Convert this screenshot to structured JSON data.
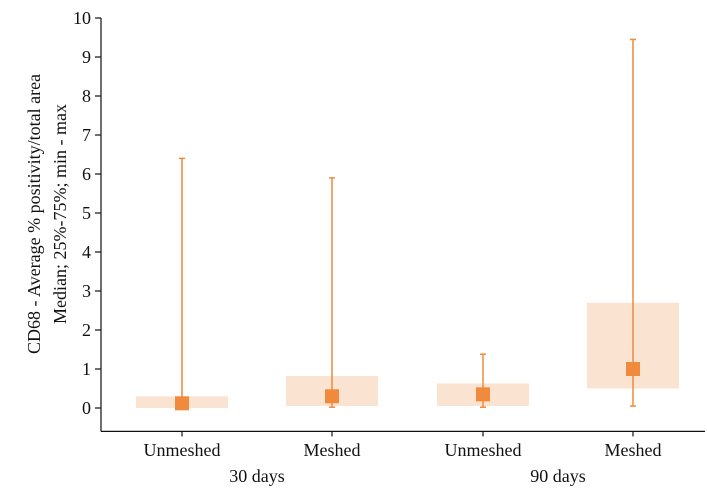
{
  "chart_data": {
    "type": "boxplot",
    "title": "",
    "ylabel_lines": [
      "CD68 - Average % positivity/total area",
      "Median; 25%-75%; min - max"
    ],
    "ylim": [
      -0.6,
      10
    ],
    "yticks": [
      0,
      1,
      2,
      3,
      4,
      5,
      6,
      7,
      8,
      9,
      10
    ],
    "categories": [
      "Unmeshed",
      "Meshed",
      "Unmeshed",
      "Meshed"
    ],
    "groups": [
      {
        "label": "30 days",
        "span": [
          0,
          1
        ]
      },
      {
        "label": "90 days",
        "span": [
          2,
          3
        ]
      }
    ],
    "boxes": [
      {
        "min": 0.0,
        "q1": 0.0,
        "median": 0.12,
        "q3": 0.3,
        "max": 6.4
      },
      {
        "min": 0.02,
        "q1": 0.05,
        "median": 0.3,
        "q3": 0.82,
        "max": 5.9
      },
      {
        "min": 0.02,
        "q1": 0.05,
        "median": 0.35,
        "q3": 0.63,
        "max": 1.38
      },
      {
        "min": 0.05,
        "q1": 0.5,
        "median": 1.0,
        "q3": 2.7,
        "max": 9.45
      }
    ],
    "colors": {
      "box_fill": "#fbe3d1",
      "whisker": "#f08a3c",
      "median_marker": "#f08a3c",
      "axis": "#111111"
    },
    "grid": false,
    "legend": "none"
  }
}
